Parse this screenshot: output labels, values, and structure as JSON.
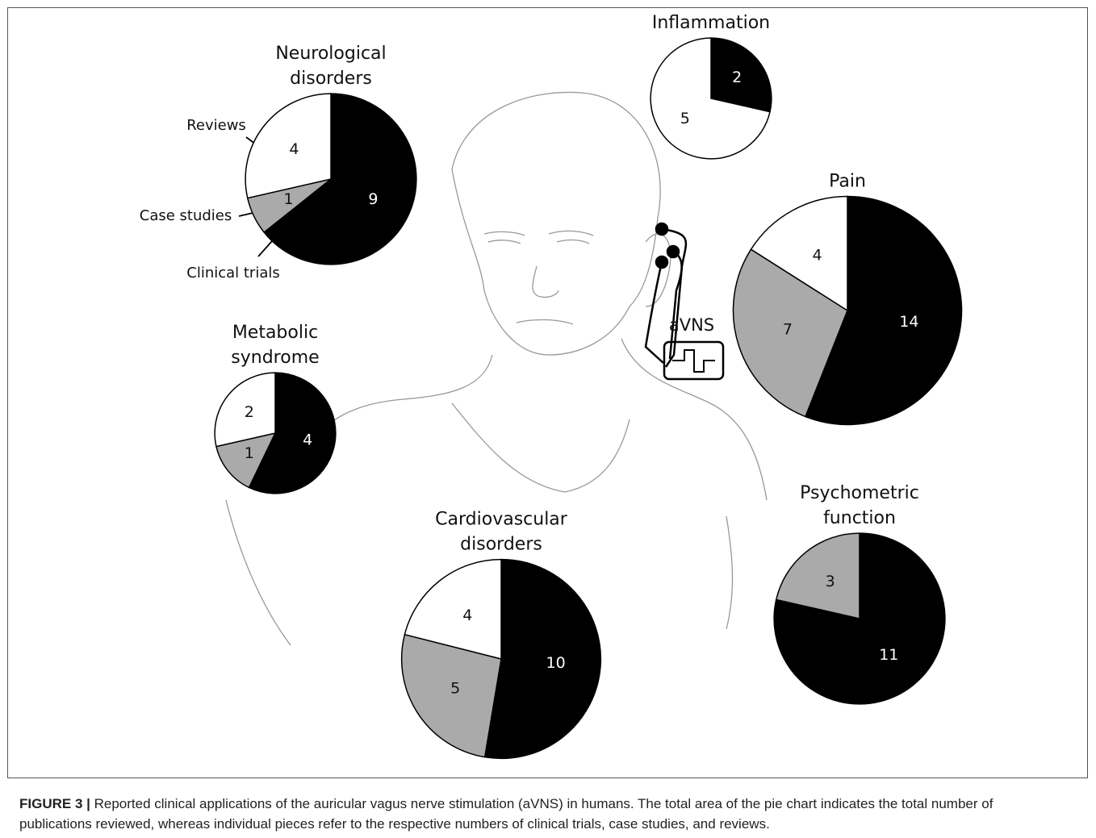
{
  "chart_data": [
    {
      "type": "pie",
      "title": [
        "Neurological",
        "disorders"
      ],
      "categories": [
        "Clinical trials",
        "Case studies",
        "Reviews"
      ],
      "values": [
        9,
        1,
        4
      ],
      "colors": [
        "#000000",
        "#aaaaaa",
        "#ffffff"
      ]
    },
    {
      "type": "pie",
      "title": [
        "Inflammation"
      ],
      "values": [
        2,
        5
      ],
      "colors": [
        "#000000",
        "#ffffff"
      ]
    },
    {
      "type": "pie",
      "title": [
        "Pain"
      ],
      "values": [
        14,
        7,
        4
      ],
      "colors": [
        "#000000",
        "#aaaaaa",
        "#ffffff"
      ]
    },
    {
      "type": "pie",
      "title": [
        "Metabolic",
        "syndrome"
      ],
      "values": [
        4,
        1,
        2
      ],
      "colors": [
        "#000000",
        "#aaaaaa",
        "#ffffff"
      ]
    },
    {
      "type": "pie",
      "title": [
        "Cardiovascular",
        "disorders"
      ],
      "values": [
        10,
        5,
        4
      ],
      "colors": [
        "#000000",
        "#aaaaaa",
        "#ffffff"
      ]
    },
    {
      "type": "pie",
      "title": [
        "Psychometric",
        "function"
      ],
      "values": [
        11,
        3
      ],
      "colors": [
        "#000000",
        "#aaaaaa"
      ]
    }
  ],
  "annotation": "aVNS",
  "caption": {
    "label": "FIGURE 3 |",
    "text": "Reported clinical applications of the auricular vagus nerve stimulation (aVNS) in humans. The total area of the pie chart indicates the total number of publications reviewed, whereas individual pieces refer to the respective numbers of clinical trials, case studies, and reviews."
  }
}
